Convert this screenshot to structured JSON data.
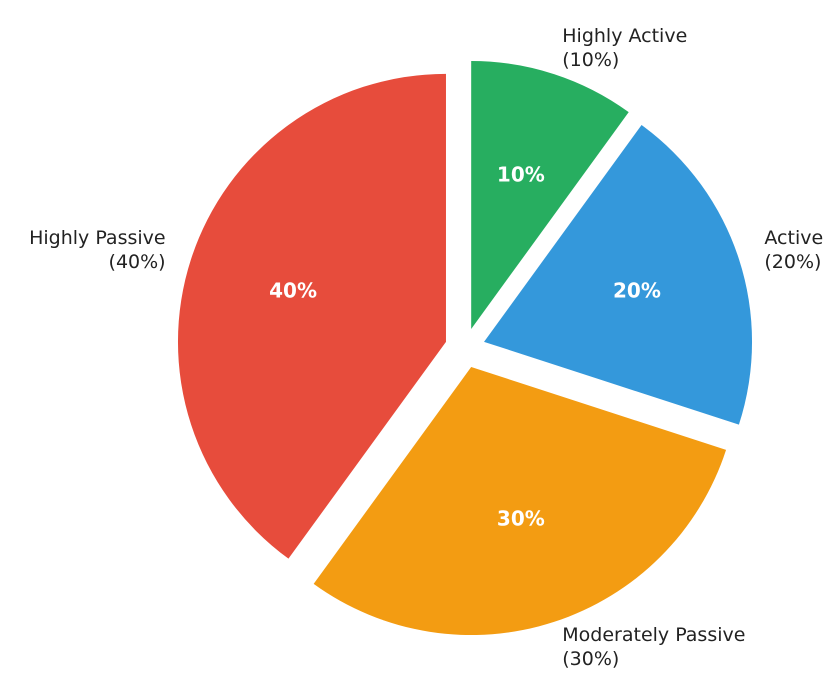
{
  "chart_data": {
    "type": "pie",
    "categories": [
      "Highly Active",
      "Active",
      "Moderately Passive",
      "Highly Passive"
    ],
    "outer_labels": [
      "(10%)",
      "(20%)",
      "(30%)",
      "(40%)"
    ],
    "values": [
      10,
      20,
      30,
      40
    ],
    "value_labels": [
      "10%",
      "20%",
      "30%",
      "40%"
    ],
    "colors": [
      "#27ae60",
      "#3498db",
      "#f39c12",
      "#e74c3c"
    ]
  }
}
